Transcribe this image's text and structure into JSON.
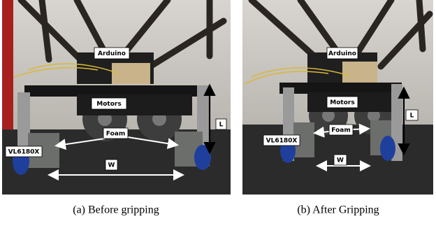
{
  "panels": [
    {
      "labels": {
        "arduino": "Arduino",
        "motors": "Motors",
        "foam": "Foam",
        "length": "L",
        "width": "W",
        "sensor": "VL6180X"
      },
      "caption": "(a) Before gripping"
    },
    {
      "labels": {
        "arduino": "Arduino",
        "motors": "Motors",
        "foam": "Foam",
        "length": "L",
        "width": "W",
        "sensor": "VL6180X"
      },
      "caption": "(b) After Gripping"
    }
  ]
}
